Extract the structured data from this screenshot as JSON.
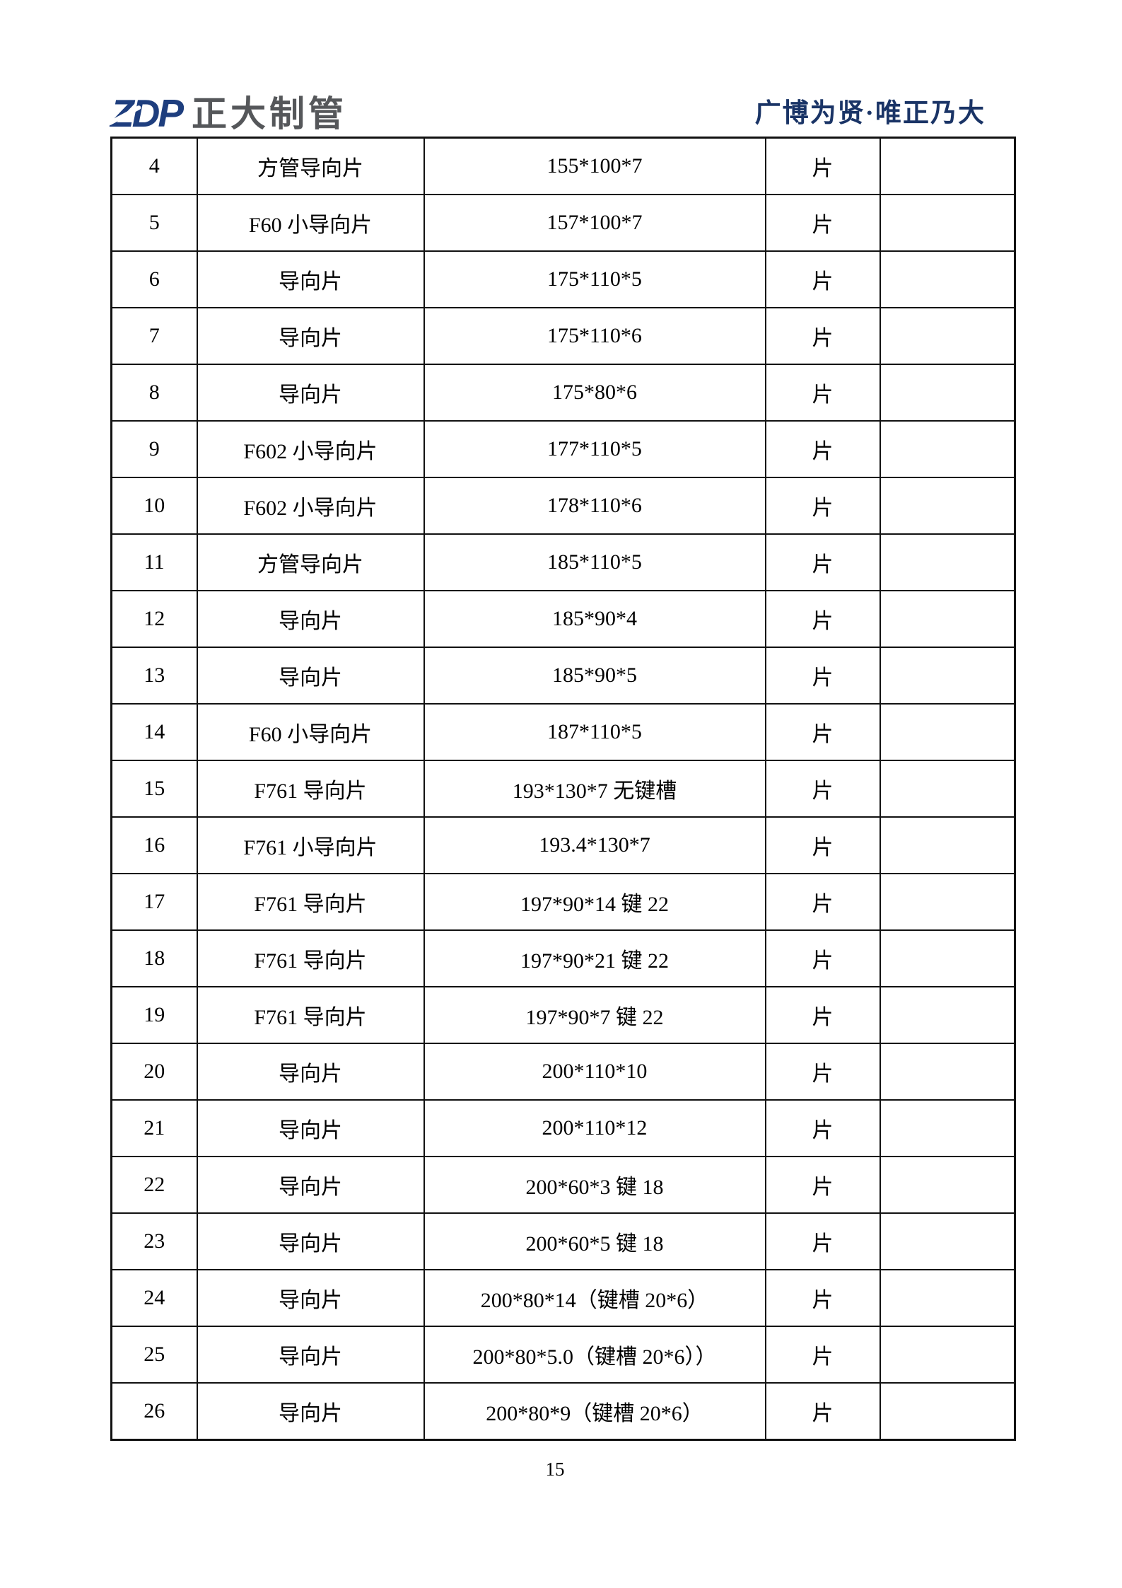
{
  "header": {
    "logo_zdp": "ZDP",
    "logo_company": "正大制管",
    "slogan": "广博为贤·唯正乃大"
  },
  "table": {
    "rows": [
      {
        "no": "4",
        "name": "方管导向片",
        "spec": "155*100*7",
        "unit": "片",
        "note": ""
      },
      {
        "no": "5",
        "name": "F60 小导向片",
        "spec": "157*100*7",
        "unit": "片",
        "note": ""
      },
      {
        "no": "6",
        "name": "导向片",
        "spec": "175*110*5",
        "unit": "片",
        "note": ""
      },
      {
        "no": "7",
        "name": "导向片",
        "spec": "175*110*6",
        "unit": "片",
        "note": ""
      },
      {
        "no": "8",
        "name": "导向片",
        "spec": "175*80*6",
        "unit": "片",
        "note": ""
      },
      {
        "no": "9",
        "name": "F602 小导向片",
        "spec": "177*110*5",
        "unit": "片",
        "note": ""
      },
      {
        "no": "10",
        "name": "F602 小导向片",
        "spec": "178*110*6",
        "unit": "片",
        "note": ""
      },
      {
        "no": "11",
        "name": "方管导向片",
        "spec": "185*110*5",
        "unit": "片",
        "note": ""
      },
      {
        "no": "12",
        "name": "导向片",
        "spec": "185*90*4",
        "unit": "片",
        "note": ""
      },
      {
        "no": "13",
        "name": "导向片",
        "spec": "185*90*5",
        "unit": "片",
        "note": ""
      },
      {
        "no": "14",
        "name": "F60 小导向片",
        "spec": "187*110*5",
        "unit": "片",
        "note": ""
      },
      {
        "no": "15",
        "name": "F761 导向片",
        "spec": "193*130*7 无键槽",
        "unit": "片",
        "note": ""
      },
      {
        "no": "16",
        "name": "F761 小导向片",
        "spec": "193.4*130*7",
        "unit": "片",
        "note": ""
      },
      {
        "no": "17",
        "name": "F761 导向片",
        "spec": "197*90*14 键 22",
        "unit": "片",
        "note": ""
      },
      {
        "no": "18",
        "name": "F761 导向片",
        "spec": "197*90*21 键 22",
        "unit": "片",
        "note": ""
      },
      {
        "no": "19",
        "name": "F761 导向片",
        "spec": "197*90*7 键 22",
        "unit": "片",
        "note": ""
      },
      {
        "no": "20",
        "name": "导向片",
        "spec": "200*110*10",
        "unit": "片",
        "note": ""
      },
      {
        "no": "21",
        "name": "导向片",
        "spec": "200*110*12",
        "unit": "片",
        "note": ""
      },
      {
        "no": "22",
        "name": "导向片",
        "spec": "200*60*3 键 18",
        "unit": "片",
        "note": ""
      },
      {
        "no": "23",
        "name": "导向片",
        "spec": "200*60*5 键 18",
        "unit": "片",
        "note": ""
      },
      {
        "no": "24",
        "name": "导向片",
        "spec": "200*80*14（键槽 20*6）",
        "unit": "片",
        "note": ""
      },
      {
        "no": "25",
        "name": "导向片",
        "spec": "200*80*5.0（键槽 20*6））",
        "unit": "片",
        "note": ""
      },
      {
        "no": "26",
        "name": "导向片",
        "spec": "200*80*9（键槽 20*6）",
        "unit": "片",
        "note": ""
      }
    ]
  },
  "footer": {
    "page_number": "15"
  }
}
